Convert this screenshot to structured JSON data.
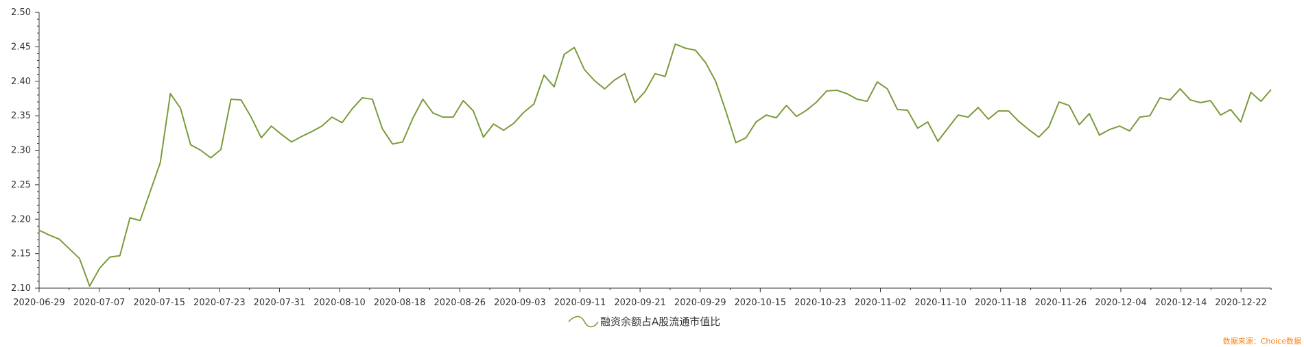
{
  "chart_data": {
    "type": "line",
    "title": "",
    "xlabel": "",
    "ylabel": "",
    "ylim": [
      2.1,
      2.5
    ],
    "yticks": [
      "2.10",
      "2.15",
      "2.20",
      "2.25",
      "2.30",
      "2.35",
      "2.40",
      "2.45",
      "2.50"
    ],
    "xtick_labels": [
      "2020-06-29",
      "2020-07-07",
      "2020-07-15",
      "2020-07-23",
      "2020-07-31",
      "2020-08-10",
      "2020-08-18",
      "2020-08-26",
      "2020-09-03",
      "2020-09-11",
      "2020-09-21",
      "2020-09-29",
      "2020-10-15",
      "2020-10-23",
      "2020-11-02",
      "2020-11-10",
      "2020-11-18",
      "2020-11-26",
      "2020-12-04",
      "2020-12-14",
      "2020-12-22"
    ],
    "legend_position": "bottom-center",
    "grid": false,
    "series": [
      {
        "name": "融资余额占A股流通市值比",
        "color": "#7a9a3a",
        "values": [
          2.184,
          2.177,
          2.171,
          2.157,
          2.143,
          2.103,
          2.129,
          2.145,
          2.147,
          2.202,
          2.198,
          2.24,
          2.282,
          2.382,
          2.361,
          2.308,
          2.3,
          2.289,
          2.301,
          2.374,
          2.373,
          2.348,
          2.318,
          2.335,
          2.323,
          2.312,
          2.32,
          2.327,
          2.335,
          2.348,
          2.34,
          2.36,
          2.376,
          2.374,
          2.331,
          2.309,
          2.312,
          2.346,
          2.374,
          2.354,
          2.348,
          2.348,
          2.372,
          2.357,
          2.319,
          2.338,
          2.329,
          2.339,
          2.355,
          2.367,
          2.409,
          2.392,
          2.439,
          2.449,
          2.417,
          2.401,
          2.389,
          2.402,
          2.411,
          2.369,
          2.385,
          2.411,
          2.407,
          2.454,
          2.448,
          2.445,
          2.427,
          2.4,
          2.357,
          2.311,
          2.318,
          2.341,
          2.351,
          2.347,
          2.365,
          2.349,
          2.358,
          2.37,
          2.386,
          2.387,
          2.382,
          2.374,
          2.371,
          2.399,
          2.389,
          2.359,
          2.358,
          2.332,
          2.341,
          2.313,
          2.332,
          2.351,
          2.348,
          2.362,
          2.345,
          2.357,
          2.357,
          2.342,
          2.33,
          2.319,
          2.334,
          2.37,
          2.365,
          2.337,
          2.353,
          2.322,
          2.33,
          2.335,
          2.328,
          2.348,
          2.35,
          2.376,
          2.373,
          2.389,
          2.373,
          2.369,
          2.372,
          2.351,
          2.359,
          2.341,
          2.384,
          2.371,
          2.388
        ]
      }
    ],
    "source_note": "数据来源：Choice数据"
  }
}
